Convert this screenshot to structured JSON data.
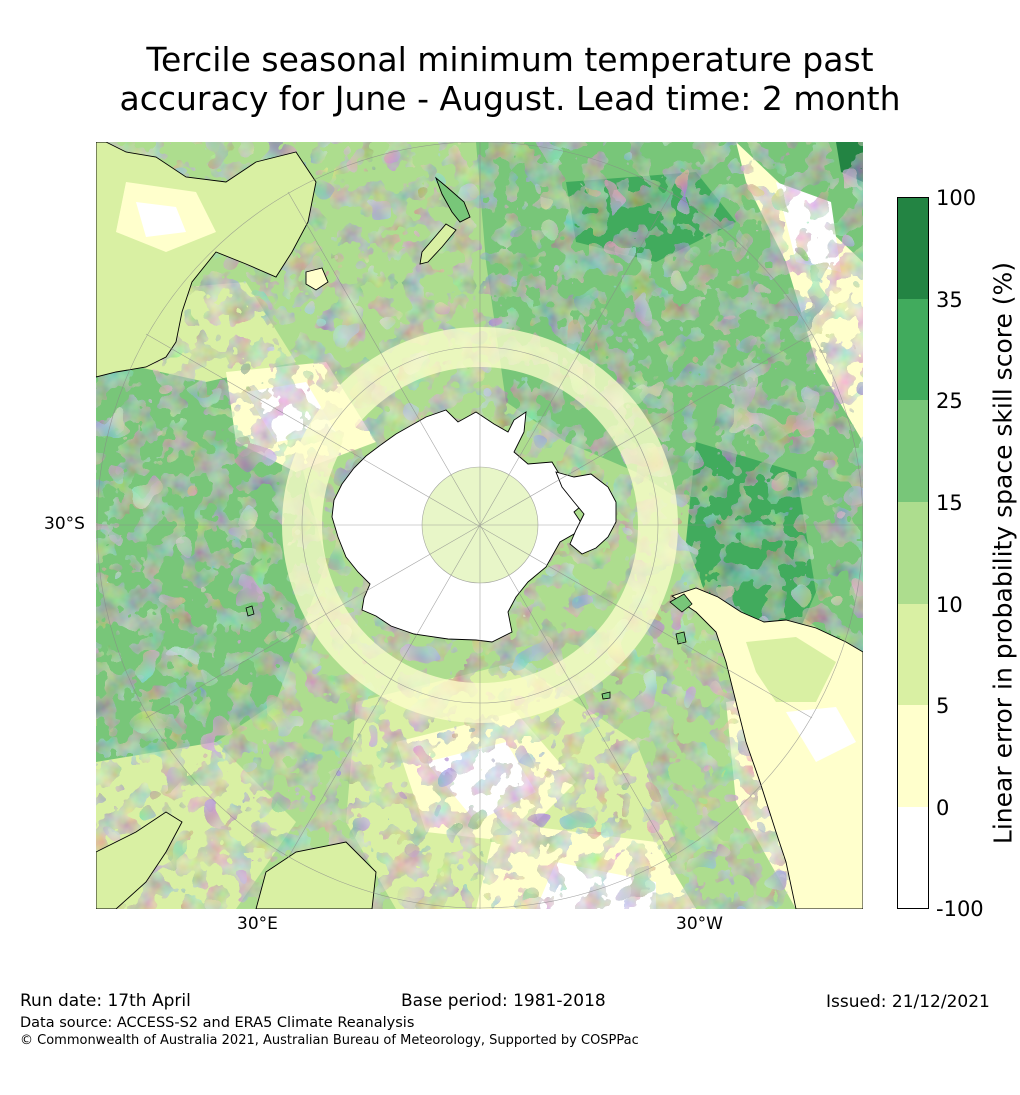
{
  "title": {
    "line1": "Tercile seasonal minimum temperature past",
    "line2": "accuracy for June - August. Lead time: 2 month"
  },
  "map": {
    "projection": "south-polar stereographic",
    "lat_label": "30°S",
    "lon_labels": [
      "30°E",
      "30°W"
    ]
  },
  "colorbar": {
    "title": "Linear error in probability space skill score (%)",
    "ticks": [
      "100",
      "35",
      "25",
      "15",
      "10",
      "5",
      "0",
      "-100"
    ],
    "bins": [
      {
        "range": "-100 to 0",
        "color": "#ffffff"
      },
      {
        "range": "0 to 5",
        "color": "#ffffcc"
      },
      {
        "range": "5 to 10",
        "color": "#d9f0a3"
      },
      {
        "range": "10 to 15",
        "color": "#addd8e"
      },
      {
        "range": "15 to 25",
        "color": "#78c679"
      },
      {
        "range": "25 to 35",
        "color": "#41ab5d"
      },
      {
        "range": "35 to 100",
        "color": "#238443"
      }
    ]
  },
  "footer": {
    "run_date": "Run date: 17th April",
    "base_period": "Base period: 1981-2018",
    "issued": "Issued: 21/12/2021",
    "data_source": "Data source: ACCESS-S2 and ERA5 Climate Reanalysis",
    "copyright": "© Commonwealth of Australia 2021, Australian Bureau of Meteorology, Supported by COSPPac"
  }
}
